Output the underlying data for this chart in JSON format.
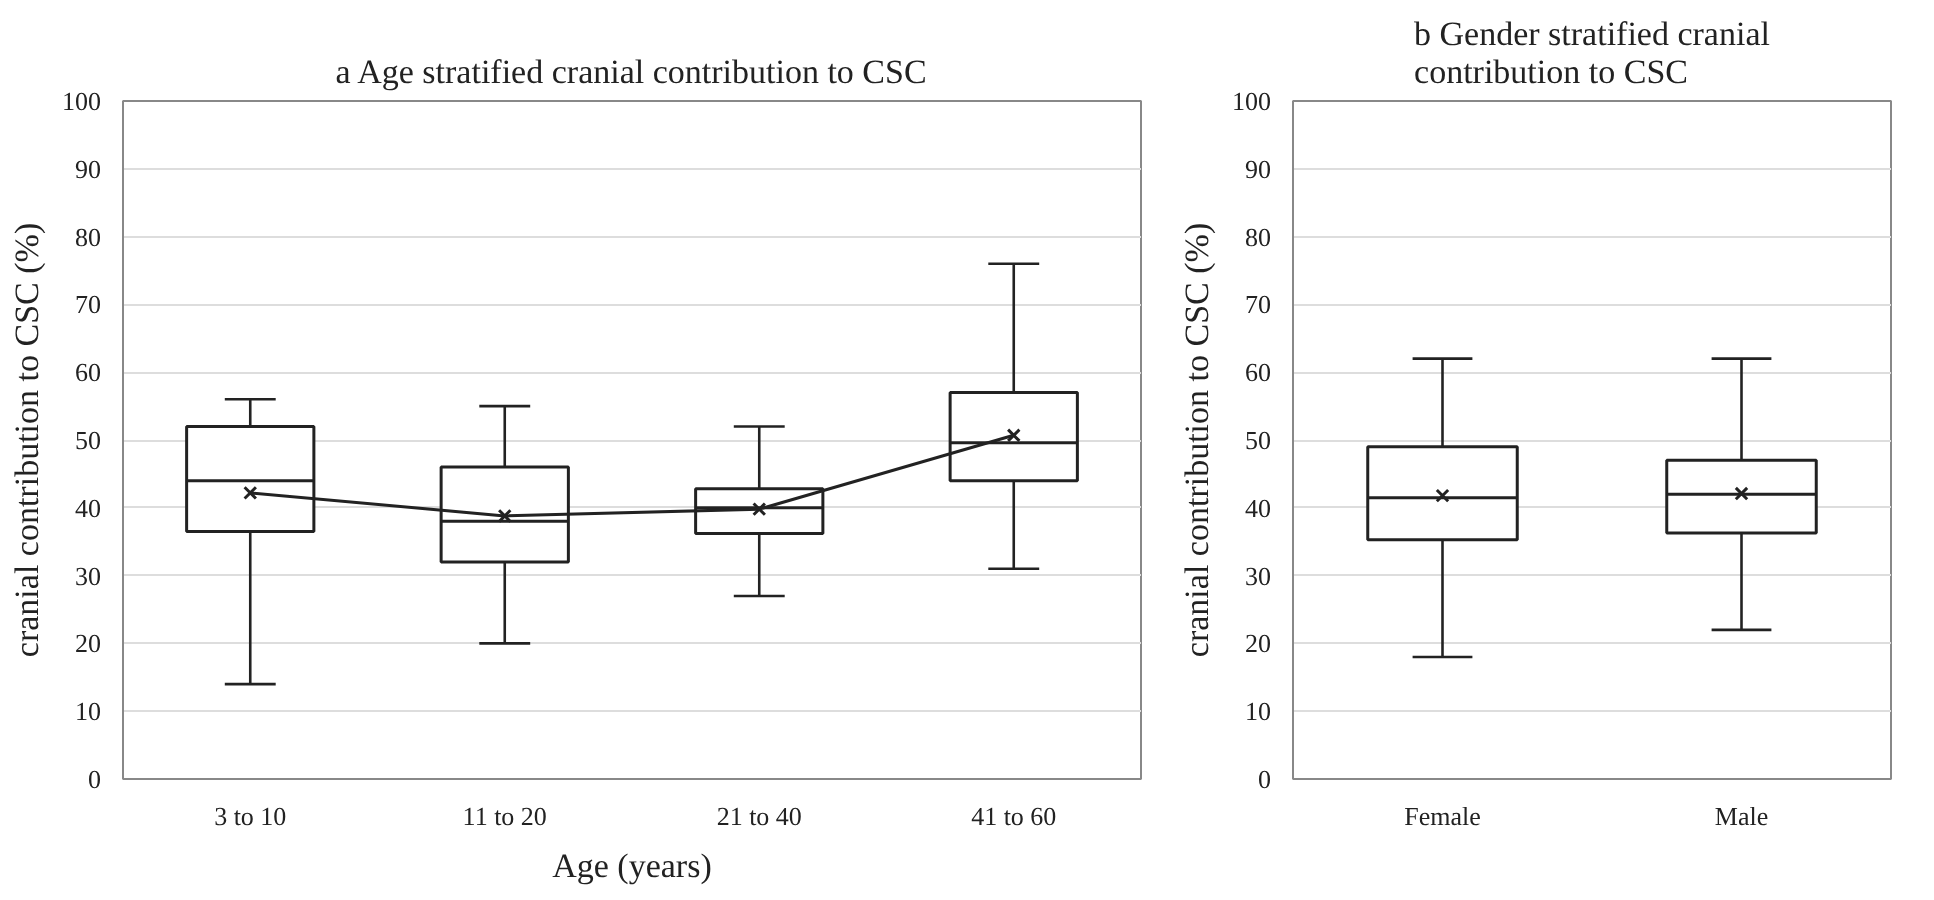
{
  "chart_data": [
    {
      "type": "box",
      "title": "a Age stratified cranial contribution to CSC",
      "xlabel": "Age (years)",
      "ylabel": "cranial contribution to CSC (%)",
      "categories": [
        "3 to 10",
        "11 to 20",
        "21 to 40",
        "41 to 60"
      ],
      "ylim": [
        0,
        100
      ],
      "yticks": [
        0,
        10,
        20,
        30,
        40,
        50,
        60,
        70,
        80,
        90,
        100
      ],
      "grid": "y",
      "boxes": [
        {
          "low": 14,
          "q1": 36.5,
          "median": 44,
          "q3": 52,
          "high": 56,
          "mean": 42.2
        },
        {
          "low": 20,
          "q1": 32,
          "median": 38,
          "q3": 46,
          "high": 55,
          "mean": 38.8
        },
        {
          "low": 27,
          "q1": 36.2,
          "median": 40,
          "q3": 42.8,
          "high": 52,
          "mean": 39.8
        },
        {
          "low": 31,
          "q1": 44,
          "median": 49.6,
          "q3": 57,
          "high": 76,
          "mean": 50.7
        }
      ],
      "series": [
        {
          "type": "line",
          "color": "#222222",
          "values": [
            42.2,
            38.8,
            39.8,
            50.7
          ]
        }
      ]
    },
    {
      "type": "box",
      "title": "b Gender stratified cranial contribution to CSC",
      "ylabel": "cranial contribution to CSC (%)",
      "categories": [
        "Female",
        "Male"
      ],
      "ylim": [
        0,
        100
      ],
      "yticks": [
        0,
        10,
        20,
        30,
        40,
        50,
        60,
        70,
        80,
        90,
        100
      ],
      "grid": "y",
      "boxes": [
        {
          "low": 18,
          "q1": 35.3,
          "median": 41.5,
          "q3": 49,
          "high": 62,
          "mean": 41.8
        },
        {
          "low": 22,
          "q1": 36.3,
          "median": 42,
          "q3": 47,
          "high": 62,
          "mean": 42.1
        }
      ]
    }
  ]
}
